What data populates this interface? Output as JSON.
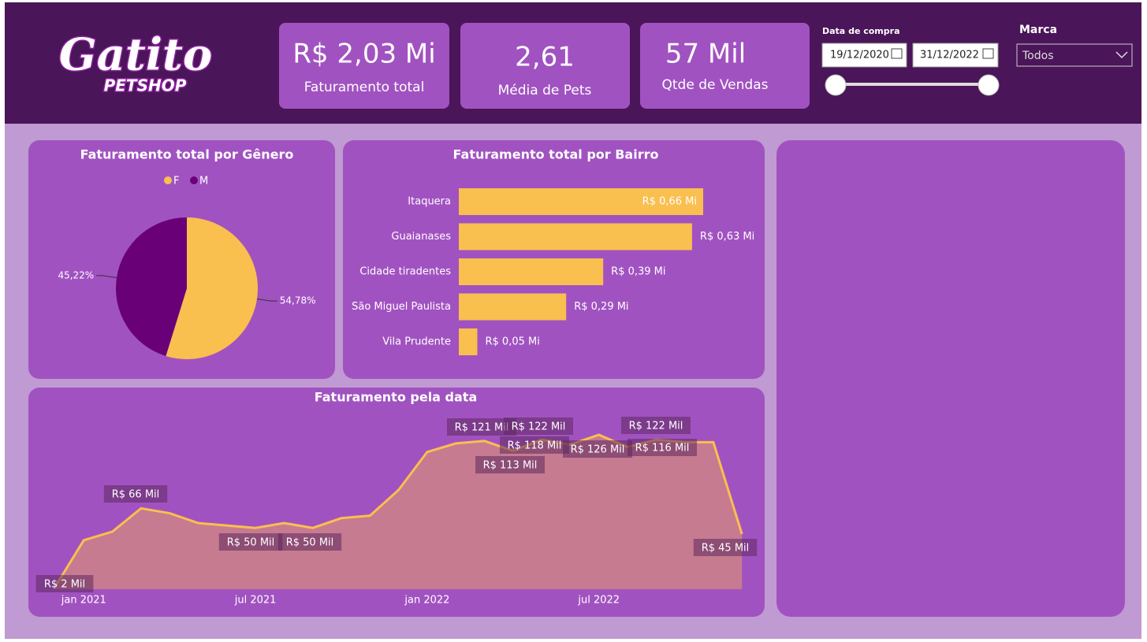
{
  "header": {
    "logo": {
      "name": "Gatito",
      "tagline": "PETSHOP"
    },
    "kpis": [
      {
        "value": "R$ 2,03 Mi",
        "label": "Faturamento total"
      },
      {
        "value": "2,61",
        "label": "Média de Pets"
      },
      {
        "value": "57 Mil",
        "label": "Qtde de Vendas"
      }
    ],
    "date_filter": {
      "label": "Data de compra",
      "start": "19/12/2020",
      "end": "31/12/2022"
    },
    "brand_filter": {
      "label": "Marca",
      "value": "Todos"
    }
  },
  "chart_data": [
    {
      "type": "pie",
      "title": "Faturamento total por Gênero",
      "categories": [
        "F",
        "M"
      ],
      "values": [
        54.78,
        45.22
      ],
      "value_labels": [
        "54,78%",
        "45,22%"
      ],
      "colors": [
        "#f9bf4f",
        "#6a0078"
      ]
    },
    {
      "type": "bar",
      "orientation": "horizontal",
      "title": "Faturamento total por Bairro",
      "categories": [
        "Itaquera",
        "Guaianases",
        "Cidade tiradentes",
        "São Miguel Paulista",
        "Vila Prudente"
      ],
      "values": [
        0.66,
        0.63,
        0.39,
        0.29,
        0.05
      ],
      "value_labels": [
        "R$ 0,66 Mi",
        "R$ 0,63 Mi",
        "R$ 0,39 Mi",
        "R$ 0,29 Mi",
        "R$ 0,05 Mi"
      ],
      "color": "#f9bf4f"
    },
    {
      "type": "area",
      "title": "Faturamento pela data",
      "categories": [
        null,
        "jan 2021",
        null,
        null,
        null,
        null,
        null,
        "jul 2021",
        null,
        null,
        null,
        null,
        null,
        "jan 2022",
        null,
        null,
        null,
        null,
        null,
        "jul 2022",
        null,
        null,
        null,
        null,
        null
      ],
      "values": [
        2,
        40,
        47,
        66,
        62,
        54,
        52,
        50,
        54,
        50,
        58,
        60,
        81,
        112,
        119,
        121,
        113,
        122,
        118,
        126,
        116,
        122,
        120,
        120,
        45
      ],
      "value_labels": [
        "R$ 2 Mil",
        null,
        null,
        "R$ 66 Mil",
        null,
        null,
        null,
        "R$ 50 Mil",
        null,
        "R$ 50 Mil",
        null,
        null,
        null,
        null,
        null,
        "R$ 121 Mil",
        "R$ 113 Mil",
        "R$ 122 Mil",
        "R$ 118 Mil",
        "R$ 126 Mil",
        "R$ 116 Mil",
        "R$ 122 Mil",
        null,
        null,
        "R$ 45 Mil"
      ],
      "color": "#f9bf4f",
      "fill_color": "#c67b90"
    }
  ]
}
